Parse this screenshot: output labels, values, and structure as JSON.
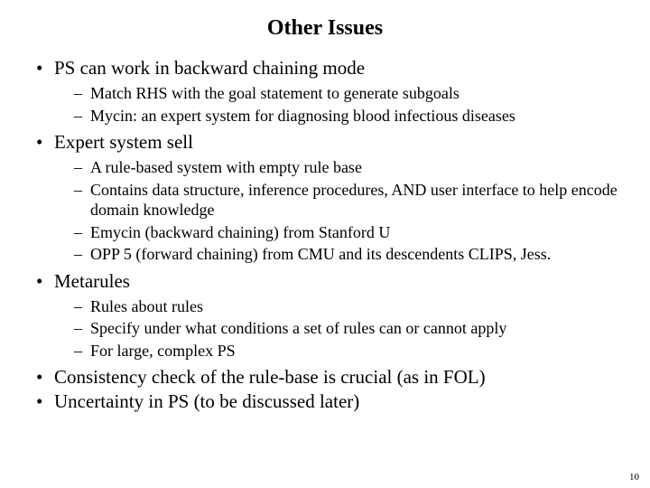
{
  "title": "Other Issues",
  "bullets": [
    {
      "text": "PS can work in backward chaining mode",
      "sub": [
        "Match RHS with the goal statement to generate subgoals",
        "Mycin: an expert system for diagnosing blood infectious diseases"
      ]
    },
    {
      "text": "Expert system sell",
      "sub": [
        "A rule-based system with empty rule base",
        "Contains data structure, inference procedures, AND user interface to help encode domain knowledge",
        "Emycin (backward chaining) from Stanford U",
        "OPP 5 (forward chaining) from CMU and its descendents CLIPS, Jess."
      ]
    },
    {
      "text": "Metarules",
      "sub": [
        "Rules about rules",
        "Specify under what conditions a set of rules can or cannot apply",
        "For large, complex PS"
      ]
    },
    {
      "text": "Consistency check of the rule-base is crucial (as in FOL)",
      "sub": []
    },
    {
      "text": "Uncertainty in PS (to be discussed later)",
      "sub": []
    }
  ],
  "pageNumber": "10"
}
